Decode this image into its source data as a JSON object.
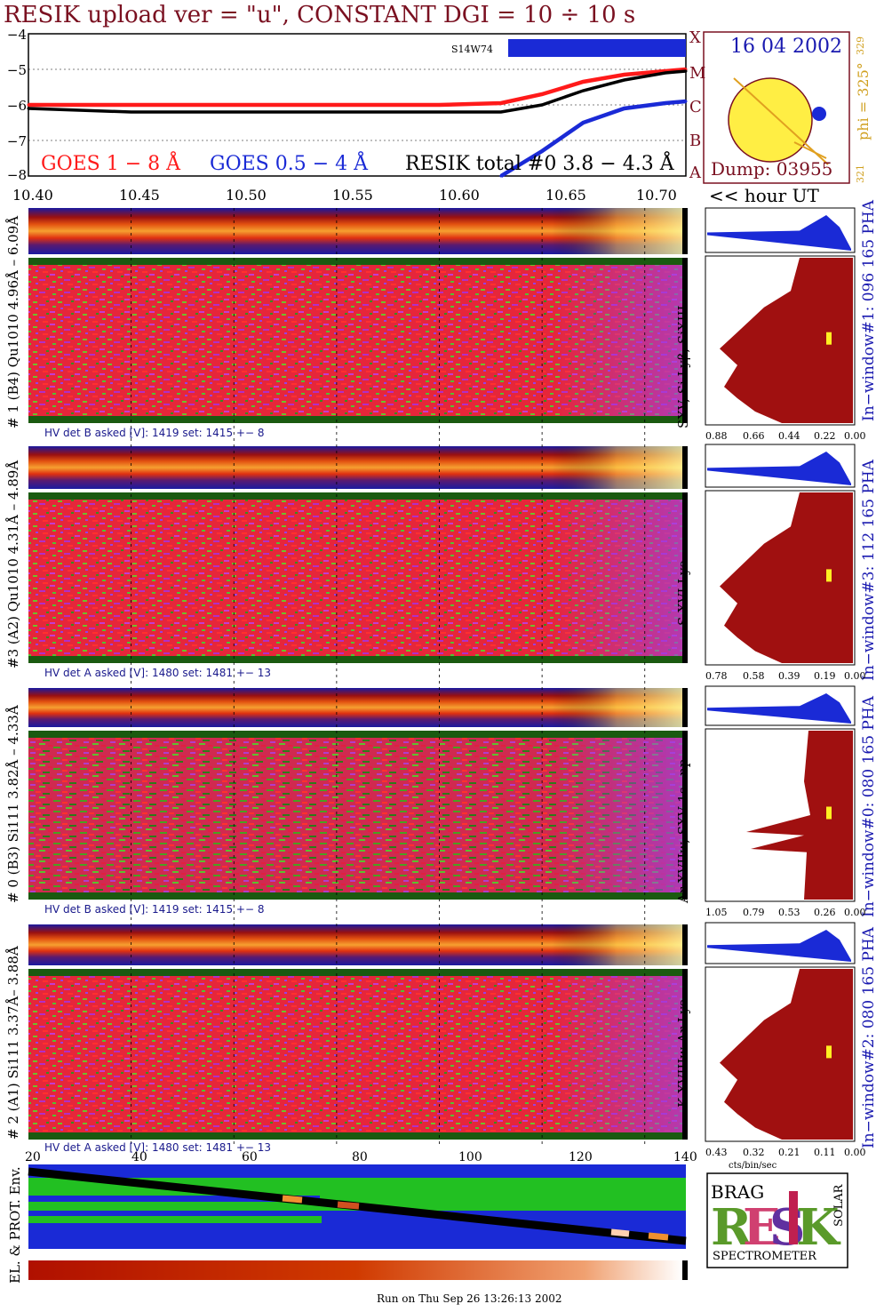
{
  "title": "RESIK upload ver = \"u\", CONSTANT  DGI =  10 ÷  10 s",
  "top_plot": {
    "y_ticks": [
      "−4",
      "−5",
      "−6",
      "−7",
      "−8"
    ],
    "class_labels": [
      "A",
      "B",
      "C",
      "M",
      "X"
    ],
    "marker_label": "S14W74",
    "legend": {
      "goes_long": "GOES 1 − 8 Å",
      "goes_short": "GOES 0.5 − 4 Å",
      "resik_total": "RESIK total #0  3.8 − 4.3 Å"
    },
    "colors": {
      "goes_long": "#ff1a1a",
      "goes_short": "#1a2ad6",
      "resik_total": "#000000"
    }
  },
  "time_axis": {
    "ticks": [
      "10.40",
      "10.45",
      "10.50",
      "10.55",
      "10.60",
      "10.65",
      "10.70"
    ],
    "unit_label": "<< hour UT"
  },
  "sun": {
    "date": "16 04 2002",
    "phi": "phi = 325°",
    "phi_sup": "329",
    "phi_sub": "321",
    "dump": "Dump: 03955"
  },
  "detectors": [
    {
      "name": "# 1 (B4) Qu1010 4.96Å – 6.09Å",
      "lines": "SXV, Si Lyβ, SiXIII",
      "hv": "HV det B asked [V]:  1419 set:  1415  +−  8",
      "window": "In−window#1:  096 165 PHA",
      "pha_ticks": [
        "0.88",
        "0.66",
        "0.44",
        "0.22",
        "0.00"
      ]
    },
    {
      "name": "#3 (A2) Qu1010  4.31Å – 4.89Å",
      "lines": "S XVI Lya",
      "hv": "HV det A asked [V]:  1480 set:  1481  +−  13",
      "window": "In−window#3:  112 165 PHA",
      "pha_ticks": [
        "0.78",
        "0.58",
        "0.39",
        "0.19",
        "0.00"
      ]
    },
    {
      "name": "# 0 (B3) Si111  3.82Å – 4.33Å",
      "lines": "Ar XVIIw,  SXV 1s−np",
      "hv": "HV det B asked [V]:  1419 set:  1415  +−  8",
      "window": "In−window#0:  080 165 PHA",
      "pha_ticks": [
        "1.05",
        "0.79",
        "0.53",
        "0.26",
        "0.00"
      ]
    },
    {
      "name": "# 2 (A1) Si111  3.37Å– 3.88Å",
      "lines": "K XVIIIw  Ar Lya",
      "hv": "HV det A asked [V]:  1480 set:  1481  +−  13",
      "window": "In−window#2:  080 165 PHA",
      "pha_ticks": [
        "0.43",
        "0.32",
        "0.21",
        "0.11",
        "0.00"
      ]
    }
  ],
  "pha_unit": "cts/bin/sec",
  "bottom_axis": {
    "ticks": [
      "20",
      "40",
      "60",
      "80",
      "100",
      "120",
      "140"
    ]
  },
  "env_label": "EL. & PROT. Env.",
  "logo": {
    "letters": "RESIK",
    "top": "BRAG",
    "side": "SOLAR",
    "bottom": "SPECTROMETER"
  },
  "footer": "Run on Thu Sep 26 13:26:13 2002",
  "chart_data": {
    "type": "line",
    "x": [
      10.4,
      10.45,
      10.5,
      10.55,
      10.6,
      10.63,
      10.65,
      10.67,
      10.69,
      10.71,
      10.72
    ],
    "series": [
      {
        "name": "GOES 1 − 8 Å",
        "values": [
          -6.0,
          -6.0,
          -6.0,
          -6.0,
          -6.0,
          -5.95,
          -5.7,
          -5.35,
          -5.15,
          -5.05,
          -5.0
        ]
      },
      {
        "name": "GOES 0.5 − 4 Å",
        "values": [
          null,
          null,
          null,
          null,
          null,
          -8.0,
          -7.3,
          -6.5,
          -6.1,
          -5.95,
          -5.9
        ]
      },
      {
        "name": "RESIK total #0  3.8 − 4.3 Å",
        "values": [
          -6.1,
          -6.2,
          -6.2,
          -6.2,
          -6.2,
          -6.2,
          -6.0,
          -5.6,
          -5.3,
          -5.1,
          -5.05
        ]
      }
    ],
    "xlim": [
      10.4,
      10.72
    ],
    "ylim": [
      -8,
      -4
    ],
    "ylabel": "",
    "xlabel": "<< hour UT"
  }
}
